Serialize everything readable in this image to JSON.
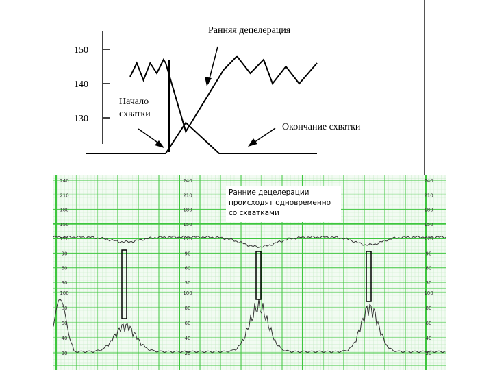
{
  "scheme": {
    "title": "Ранняя децелерация",
    "y_ticks": [
      150,
      140,
      130
    ],
    "label_start_line1": "Начало",
    "label_start_line2": "схватки",
    "label_end": "Окончание схватки",
    "fhr_trace": [
      [
        0,
        142
      ],
      [
        3,
        146
      ],
      [
        6,
        141
      ],
      [
        9,
        146
      ],
      [
        12,
        143
      ],
      [
        15,
        147
      ],
      [
        16,
        146
      ],
      [
        25,
        126
      ],
      [
        42,
        144
      ],
      [
        48,
        148
      ],
      [
        54,
        143
      ],
      [
        60,
        147
      ],
      [
        64,
        140
      ],
      [
        70,
        145
      ],
      [
        76,
        140
      ],
      [
        84,
        146
      ]
    ],
    "contraction_trace": [
      [
        -20,
        0
      ],
      [
        16,
        0
      ],
      [
        25,
        9
      ],
      [
        40,
        0
      ],
      [
        84,
        0
      ]
    ]
  },
  "ctg": {
    "fhr_ticks": [
      240,
      210,
      180,
      150,
      120,
      90,
      60,
      30
    ],
    "uc_ticks": [
      100,
      80,
      60,
      40,
      20
    ],
    "annotation_lines": [
      "Ранние децелерации",
      "происходят одновременно",
      "со схватками"
    ]
  }
}
